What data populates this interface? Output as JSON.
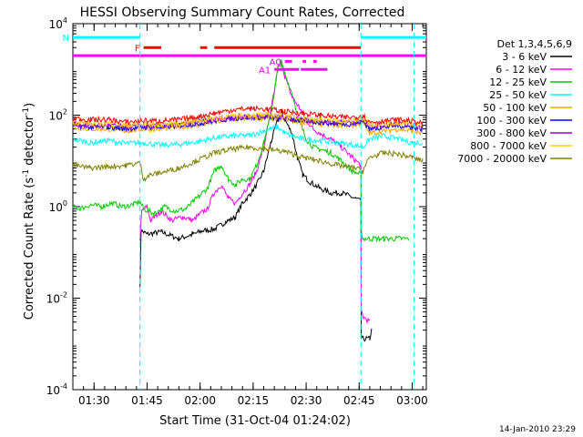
{
  "chart_data": {
    "type": "line",
    "title": "HESSI Observing Summary Count Rates, Corrected",
    "xlabel": "Start Time (31-Oct-04 01:24:02)",
    "ylabel_main": "Corrected Count Rate (s",
    "ylabel_sup1": "-1",
    "ylabel_mid": " detector",
    "ylabel_sup2": "-1",
    "ylabel_end": ")",
    "timestamp": "14-Jan-2010 23:29",
    "yscale": "log",
    "ylim": [
      0.0001,
      10000
    ],
    "xlim_minutes": [
      0,
      100
    ],
    "x_tick_labels": [
      "01:30",
      "01:45",
      "02:00",
      "02:15",
      "02:30",
      "02:45",
      "03:00"
    ],
    "x_tick_minutes": [
      6,
      21,
      36,
      51,
      66,
      81,
      96
    ],
    "y_ticks": [
      {
        "value": 0.0001,
        "base": "10",
        "exp": "-4"
      },
      {
        "value": 0.01,
        "base": "10",
        "exp": "-2"
      },
      {
        "value": 1,
        "base": "10",
        "exp": "0"
      },
      {
        "value": 100,
        "base": "10",
        "exp": "2"
      },
      {
        "value": 10000,
        "base": "10",
        "exp": "4"
      }
    ],
    "legend": {
      "title": "Det 1,3,4,5,6,9",
      "position": "right"
    },
    "series": [
      {
        "name": "3 - 6 keV",
        "color": "#000000",
        "points": [
          [
            0,
            null
          ],
          [
            18,
            null
          ],
          [
            19,
            0.02
          ],
          [
            19.3,
            0.3
          ],
          [
            21,
            0.25
          ],
          [
            25,
            0.28
          ],
          [
            30,
            0.2
          ],
          [
            34,
            0.25
          ],
          [
            37,
            0.3
          ],
          [
            40,
            0.32
          ],
          [
            43,
            0.45
          ],
          [
            46,
            0.6
          ],
          [
            48,
            1.2
          ],
          [
            50,
            1.8
          ],
          [
            52,
            3
          ],
          [
            54,
            6
          ],
          [
            56,
            25
          ],
          [
            58,
            80
          ],
          [
            59,
            120
          ],
          [
            60,
            80
          ],
          [
            62,
            40
          ],
          [
            63.5,
            12
          ],
          [
            65,
            5
          ],
          [
            67,
            3.5
          ],
          [
            70,
            2.5
          ],
          [
            73,
            2
          ],
          [
            76,
            2
          ],
          [
            80,
            1.5
          ],
          [
            81.5,
            1.3
          ],
          [
            81.6,
            0.0013
          ],
          [
            84,
            0.0013
          ],
          [
            84.5,
            0.002
          ]
        ]
      },
      {
        "name": "6 - 12 keV",
        "color": "#ff00ff",
        "points": [
          [
            19,
            0.2
          ],
          [
            19.5,
            0.8
          ],
          [
            21,
            1
          ],
          [
            22,
            0.5
          ],
          [
            25,
            0.8
          ],
          [
            28,
            0.5
          ],
          [
            31,
            0.6
          ],
          [
            34,
            0.5
          ],
          [
            36,
            0.7
          ],
          [
            38,
            0.9
          ],
          [
            40,
            2
          ],
          [
            42,
            3
          ],
          [
            44,
            1.5
          ],
          [
            46,
            1.2
          ],
          [
            48,
            2
          ],
          [
            50,
            3
          ],
          [
            52,
            6
          ],
          [
            54,
            20
          ],
          [
            56,
            120
          ],
          [
            58,
            1000
          ],
          [
            59,
            1500
          ],
          [
            60,
            700
          ],
          [
            62,
            250
          ],
          [
            64,
            150
          ],
          [
            66,
            80
          ],
          [
            68,
            50
          ],
          [
            70,
            40
          ],
          [
            73,
            30
          ],
          [
            76,
            20
          ],
          [
            79,
            12
          ],
          [
            81.5,
            8
          ],
          [
            81.6,
            0.005
          ],
          [
            82,
            0.004
          ],
          [
            84,
            0.003
          ]
        ]
      },
      {
        "name": "12 - 25 keV",
        "color": "#00cc00",
        "points": [
          [
            0,
            1
          ],
          [
            2,
            0.9
          ],
          [
            5,
            1.1
          ],
          [
            8,
            1
          ],
          [
            11,
            1.2
          ],
          [
            14,
            1
          ],
          [
            17,
            1.1
          ],
          [
            19,
            1.3
          ],
          [
            20,
            0.9
          ],
          [
            23,
            0.7
          ],
          [
            26,
            1
          ],
          [
            29,
            0.8
          ],
          [
            32,
            0.9
          ],
          [
            35,
            1.5
          ],
          [
            38,
            2.5
          ],
          [
            40,
            6
          ],
          [
            42,
            8
          ],
          [
            44,
            4
          ],
          [
            46,
            3
          ],
          [
            48,
            4
          ],
          [
            50,
            4
          ],
          [
            52,
            8
          ],
          [
            54,
            25
          ],
          [
            56,
            100
          ],
          [
            58,
            1100
          ],
          [
            59,
            1400
          ],
          [
            60,
            800
          ],
          [
            62,
            300
          ],
          [
            64,
            80
          ],
          [
            66,
            30
          ],
          [
            68,
            20
          ],
          [
            70,
            18
          ],
          [
            73,
            15
          ],
          [
            76,
            10
          ],
          [
            79,
            6
          ],
          [
            81.5,
            5
          ],
          [
            81.6,
            0.3
          ],
          [
            82,
            0.2
          ],
          [
            84,
            0.2
          ],
          [
            88,
            0.2
          ],
          [
            95,
            0.2
          ]
        ]
      },
      {
        "name": "25 - 50 keV",
        "color": "#00ffff",
        "points": [
          [
            0,
            30
          ],
          [
            5,
            25
          ],
          [
            10,
            28
          ],
          [
            15,
            24
          ],
          [
            20,
            25
          ],
          [
            25,
            22
          ],
          [
            30,
            23
          ],
          [
            35,
            26
          ],
          [
            40,
            32
          ],
          [
            45,
            35
          ],
          [
            50,
            36
          ],
          [
            54,
            45
          ],
          [
            56,
            50
          ],
          [
            58,
            55
          ],
          [
            60,
            40
          ],
          [
            62,
            35
          ],
          [
            65,
            30
          ],
          [
            70,
            28
          ],
          [
            75,
            25
          ],
          [
            80,
            22
          ],
          [
            82,
            20
          ],
          [
            84,
            30
          ],
          [
            88,
            35
          ],
          [
            92,
            30
          ],
          [
            96,
            25
          ],
          [
            99,
            25
          ]
        ]
      },
      {
        "name": "50 - 100 keV",
        "color": "#ffa500",
        "points": [
          [
            0,
            55
          ],
          [
            5,
            50
          ],
          [
            10,
            50
          ],
          [
            15,
            45
          ],
          [
            20,
            50
          ],
          [
            25,
            50
          ],
          [
            30,
            55
          ],
          [
            35,
            60
          ],
          [
            40,
            70
          ],
          [
            45,
            80
          ],
          [
            50,
            85
          ],
          [
            55,
            85
          ],
          [
            60,
            80
          ],
          [
            65,
            70
          ],
          [
            70,
            65
          ],
          [
            75,
            60
          ],
          [
            80,
            60
          ],
          [
            82,
            70
          ],
          [
            84,
            40
          ],
          [
            88,
            45
          ],
          [
            92,
            50
          ],
          [
            96,
            45
          ],
          [
            99,
            40
          ]
        ]
      },
      {
        "name": "100 - 300 keV",
        "color": "#0000ff",
        "points": [
          [
            0,
            60
          ],
          [
            5,
            55
          ],
          [
            10,
            55
          ],
          [
            15,
            50
          ],
          [
            20,
            55
          ],
          [
            25,
            55
          ],
          [
            30,
            60
          ],
          [
            35,
            65
          ],
          [
            40,
            75
          ],
          [
            45,
            85
          ],
          [
            50,
            90
          ],
          [
            55,
            90
          ],
          [
            60,
            85
          ],
          [
            65,
            75
          ],
          [
            70,
            70
          ],
          [
            75,
            65
          ],
          [
            80,
            65
          ],
          [
            82,
            75
          ],
          [
            84,
            50
          ],
          [
            88,
            55
          ],
          [
            92,
            60
          ],
          [
            96,
            55
          ],
          [
            99,
            50
          ]
        ]
      },
      {
        "name": "300 - 800 keV",
        "color": "#9900cc",
        "points": [
          [
            0,
            65
          ],
          [
            5,
            60
          ],
          [
            10,
            60
          ],
          [
            15,
            55
          ],
          [
            20,
            58
          ],
          [
            25,
            58
          ],
          [
            30,
            62
          ],
          [
            35,
            70
          ],
          [
            40,
            80
          ],
          [
            45,
            90
          ],
          [
            50,
            95
          ],
          [
            55,
            95
          ],
          [
            60,
            90
          ],
          [
            65,
            80
          ],
          [
            70,
            75
          ],
          [
            75,
            70
          ],
          [
            80,
            70
          ],
          [
            82,
            80
          ],
          [
            84,
            55
          ],
          [
            88,
            60
          ],
          [
            92,
            65
          ],
          [
            96,
            60
          ],
          [
            99,
            55
          ]
        ]
      },
      {
        "name": "800 - 7000 keV",
        "color": "#ffcc00",
        "points": [
          [
            0,
            70
          ],
          [
            5,
            65
          ],
          [
            10,
            65
          ],
          [
            15,
            60
          ],
          [
            20,
            62
          ],
          [
            25,
            62
          ],
          [
            30,
            65
          ],
          [
            35,
            75
          ],
          [
            40,
            85
          ],
          [
            45,
            95
          ],
          [
            50,
            100
          ],
          [
            55,
            100
          ],
          [
            60,
            95
          ],
          [
            65,
            85
          ],
          [
            70,
            80
          ],
          [
            75,
            75
          ],
          [
            80,
            75
          ],
          [
            82,
            85
          ],
          [
            84,
            60
          ],
          [
            88,
            65
          ],
          [
            92,
            70
          ],
          [
            96,
            65
          ],
          [
            99,
            60
          ]
        ]
      },
      {
        "name": "7000 - 20000 keV",
        "color": "#808000",
        "points": [
          [
            0,
            8
          ],
          [
            5,
            7
          ],
          [
            10,
            7.5
          ],
          [
            15,
            8
          ],
          [
            19,
            9
          ],
          [
            20,
            4
          ],
          [
            22,
            5
          ],
          [
            25,
            5.5
          ],
          [
            30,
            7
          ],
          [
            35,
            10
          ],
          [
            40,
            15
          ],
          [
            45,
            18
          ],
          [
            50,
            20
          ],
          [
            55,
            18
          ],
          [
            60,
            16
          ],
          [
            65,
            12
          ],
          [
            70,
            10
          ],
          [
            75,
            8
          ],
          [
            80,
            7
          ],
          [
            82,
            6
          ],
          [
            84,
            12
          ],
          [
            88,
            15
          ],
          [
            92,
            14
          ],
          [
            96,
            12
          ],
          [
            99,
            10
          ]
        ]
      },
      {
        "name": "red",
        "color": "#ff0000",
        "hidden_from_legend": true,
        "points": [
          [
            0,
            85
          ],
          [
            5,
            80
          ],
          [
            10,
            80
          ],
          [
            15,
            70
          ],
          [
            20,
            75
          ],
          [
            25,
            75
          ],
          [
            30,
            80
          ],
          [
            35,
            90
          ],
          [
            40,
            110
          ],
          [
            45,
            130
          ],
          [
            50,
            140
          ],
          [
            55,
            135
          ],
          [
            60,
            120
          ],
          [
            65,
            110
          ],
          [
            70,
            100
          ],
          [
            75,
            90
          ],
          [
            80,
            90
          ],
          [
            82,
            100
          ],
          [
            84,
            70
          ],
          [
            88,
            75
          ],
          [
            92,
            80
          ],
          [
            96,
            75
          ],
          [
            99,
            65
          ]
        ]
      }
    ],
    "status_bars": [
      {
        "label": "N",
        "color": "#00ffff",
        "level": 5000,
        "segments": [
          [
            0,
            19
          ],
          [
            81.5,
            100
          ]
        ]
      },
      {
        "label": "F",
        "color": "#ff0000",
        "level": 3000,
        "segments": [
          [
            20,
            25
          ],
          [
            36,
            38
          ],
          [
            40,
            81.5
          ]
        ]
      },
      {
        "label": "A0",
        "color": "#ff00ff",
        "level": 1500,
        "segments": [
          [
            60,
            62
          ],
          [
            65,
            66
          ],
          [
            68,
            69
          ]
        ]
      },
      {
        "label": "A1",
        "color": "#ff00ff",
        "level": 1000,
        "segments": [
          [
            57,
            64
          ],
          [
            64.5,
            72
          ]
        ]
      },
      {
        "label": "",
        "color": "#ff00ff",
        "level": 2000,
        "segments": [
          [
            0,
            100
          ]
        ]
      }
    ],
    "vlines_minutes": [
      19,
      81.5,
      96.5
    ]
  }
}
